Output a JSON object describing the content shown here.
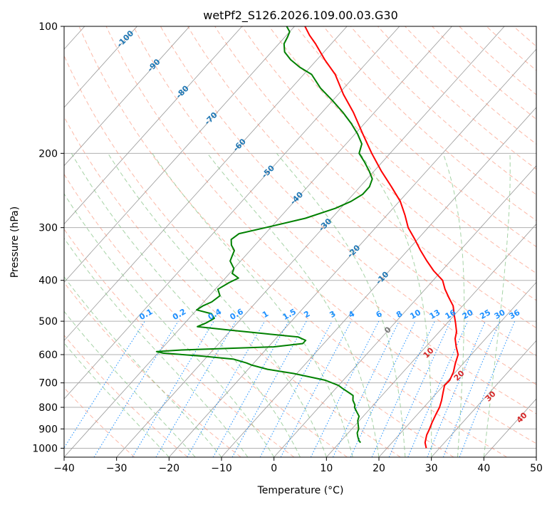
{
  "chart_data": {
    "type": "skew-t log-p",
    "title": "wetPf2_S126.2026.109.00.03.G30",
    "xlabel": "Temperature (°C)",
    "ylabel": "Pressure (hPa)",
    "xlim": [
      -40,
      50
    ],
    "ylim": [
      1050,
      100
    ],
    "y_scale": "log",
    "x_ticks": [
      "−40",
      "−30",
      "−20",
      "−10",
      "0",
      "10",
      "20",
      "30",
      "40",
      "50"
    ],
    "x_tick_values": [
      -40,
      -30,
      -20,
      -10,
      0,
      10,
      20,
      30,
      40,
      50
    ],
    "y_ticks": [
      "100",
      "200",
      "300",
      "400",
      "500",
      "600",
      "700",
      "800",
      "900",
      "1000"
    ],
    "y_tick_values": [
      100,
      200,
      300,
      400,
      500,
      600,
      700,
      800,
      900,
      1000
    ],
    "grid": true,
    "colors": {
      "temperature": "#ff0000",
      "dewpoint": "#008000",
      "isotherm": "#555555",
      "dry_adiabat": "#fa8060",
      "moist_adiabat": "#80c080",
      "mixing_ratio": "#1e90ff",
      "isotherm_label": "#1f77b4",
      "moist_label": "#d62728",
      "zero_label": "#777777",
      "mixing_label": "#1e90ff"
    },
    "series": [
      {
        "key": "temperature",
        "color": "#ff0000",
        "points": [
          [
            1000,
            27.5
          ],
          [
            970,
            26.3
          ],
          [
            930,
            25.3
          ],
          [
            900,
            24.8
          ],
          [
            870,
            24.2
          ],
          [
            830,
            23.5
          ],
          [
            800,
            23.0
          ],
          [
            770,
            22.2
          ],
          [
            740,
            21.2
          ],
          [
            710,
            20.2
          ],
          [
            690,
            20.3
          ],
          [
            660,
            19.6
          ],
          [
            630,
            18.5
          ],
          [
            600,
            17.5
          ],
          [
            575,
            15.8
          ],
          [
            550,
            14.2
          ],
          [
            530,
            13.3
          ],
          [
            505,
            11.6
          ],
          [
            485,
            10.1
          ],
          [
            460,
            8.2
          ],
          [
            440,
            6.0
          ],
          [
            420,
            3.8
          ],
          [
            400,
            1.8
          ],
          [
            380,
            -1.5
          ],
          [
            360,
            -4.5
          ],
          [
            340,
            -7.5
          ],
          [
            320,
            -10.5
          ],
          [
            300,
            -13.8
          ],
          [
            280,
            -16.6
          ],
          [
            260,
            -19.8
          ],
          [
            240,
            -24.0
          ],
          [
            220,
            -28.7
          ],
          [
            200,
            -33.5
          ],
          [
            180,
            -38.5
          ],
          [
            160,
            -44.0
          ],
          [
            145,
            -49.0
          ],
          [
            130,
            -54.0
          ],
          [
            120,
            -58.5
          ],
          [
            110,
            -63.0
          ],
          [
            105,
            -65.6
          ],
          [
            100,
            -68.0
          ]
        ]
      },
      {
        "key": "dewpoint",
        "color": "#008000",
        "points": [
          [
            970,
            14.0
          ],
          [
            960,
            13.4
          ],
          [
            940,
            12.5
          ],
          [
            920,
            11.7
          ],
          [
            900,
            11.3
          ],
          [
            880,
            10.5
          ],
          [
            860,
            9.7
          ],
          [
            840,
            9.2
          ],
          [
            820,
            8.0
          ],
          [
            800,
            6.8
          ],
          [
            790,
            6.5
          ],
          [
            770,
            5.3
          ],
          [
            750,
            4.5
          ],
          [
            740,
            3.4
          ],
          [
            720,
            1.1
          ],
          [
            710,
            0.0
          ],
          [
            690,
            -3.4
          ],
          [
            665,
            -10.6
          ],
          [
            650,
            -16.3
          ],
          [
            635,
            -20.1
          ],
          [
            628,
            -21.4
          ],
          [
            615,
            -24.5
          ],
          [
            605,
            -31.0
          ],
          [
            600,
            -35.0
          ],
          [
            595,
            -39.0
          ],
          [
            590,
            -40.5
          ],
          [
            585,
            -36.0
          ],
          [
            575,
            -19.0
          ],
          [
            565,
            -14.0
          ],
          [
            555,
            -14.0
          ],
          [
            545,
            -16.0
          ],
          [
            535,
            -23.0
          ],
          [
            525,
            -30.0
          ],
          [
            515,
            -37.0
          ],
          [
            505,
            -36.0
          ],
          [
            492,
            -35.2
          ],
          [
            480,
            -36.5
          ],
          [
            470,
            -40.0
          ],
          [
            460,
            -39.5
          ],
          [
            450,
            -38.5
          ],
          [
            435,
            -38.0
          ],
          [
            420,
            -39.5
          ],
          [
            405,
            -38.5
          ],
          [
            395,
            -37.5
          ],
          [
            385,
            -39.5
          ],
          [
            375,
            -40.0
          ],
          [
            360,
            -42.0
          ],
          [
            350,
            -42.5
          ],
          [
            340,
            -43.0
          ],
          [
            330,
            -44.5
          ],
          [
            320,
            -45.5
          ],
          [
            310,
            -45.0
          ],
          [
            300,
            -41.0
          ],
          [
            285,
            -35.0
          ],
          [
            270,
            -31.0
          ],
          [
            260,
            -29.2
          ],
          [
            250,
            -28.2
          ],
          [
            240,
            -28.2
          ],
          [
            230,
            -29.0
          ],
          [
            220,
            -31.0
          ],
          [
            210,
            -33.3
          ],
          [
            200,
            -35.9
          ],
          [
            190,
            -37.0
          ],
          [
            180,
            -39.5
          ],
          [
            170,
            -42.5
          ],
          [
            160,
            -46.0
          ],
          [
            150,
            -50.0
          ],
          [
            140,
            -54.5
          ],
          [
            130,
            -58.5
          ],
          [
            125,
            -62.0
          ],
          [
            120,
            -65.0
          ],
          [
            115,
            -67.5
          ],
          [
            110,
            -69.0
          ],
          [
            106,
            -69.5
          ],
          [
            103,
            -70.0
          ],
          [
            100,
            -71.5
          ]
        ]
      }
    ],
    "isotherm_labels": [
      {
        "t": -100,
        "text": "-100"
      },
      {
        "t": -90,
        "text": "-90"
      },
      {
        "t": -80,
        "text": "-80"
      },
      {
        "t": -70,
        "text": "-70"
      },
      {
        "t": -60,
        "text": "-60"
      },
      {
        "t": -50,
        "text": "-50"
      },
      {
        "t": -40,
        "text": "-40"
      },
      {
        "t": -30,
        "text": "-30"
      },
      {
        "t": -20,
        "text": "-20"
      },
      {
        "t": -10,
        "text": "-10"
      }
    ],
    "zero_label": {
      "t": 0,
      "text": "0"
    },
    "moist_labels": [
      {
        "t": 10,
        "text": "10"
      },
      {
        "t": 20,
        "text": "20"
      },
      {
        "t": 30,
        "text": "30"
      },
      {
        "t": 40,
        "text": "40"
      }
    ],
    "mixing_ratio_labels": [
      "0.1",
      "0.2",
      "0.4",
      "0.6",
      "1",
      "1.5",
      "2",
      "3",
      "4",
      "6",
      "8",
      "10",
      "13",
      "16",
      "20",
      "25",
      "30",
      "36"
    ],
    "mixing_ratio_values": [
      0.1,
      0.2,
      0.4,
      0.6,
      1,
      1.5,
      2,
      3,
      4,
      6,
      8,
      10,
      13,
      16,
      20,
      25,
      30,
      36
    ]
  }
}
